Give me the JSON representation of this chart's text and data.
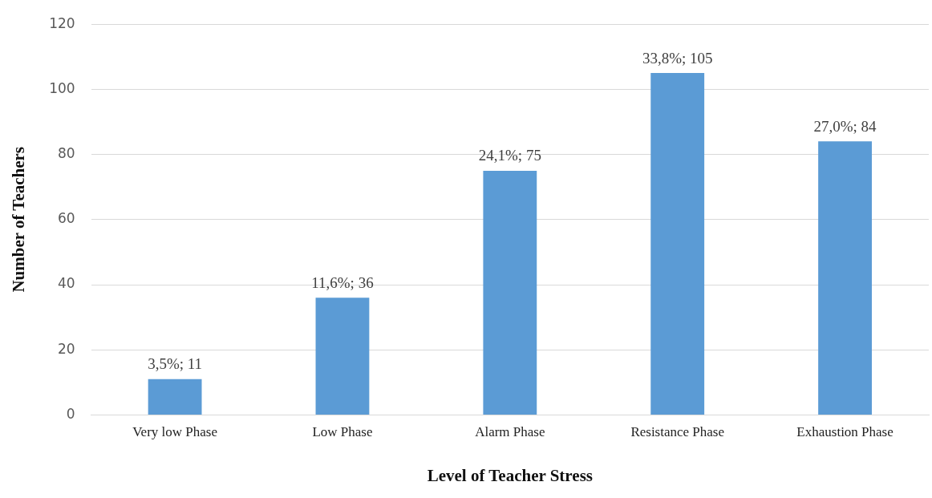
{
  "chart_data": {
    "type": "bar",
    "xlabel": "Level of Teacher Stress",
    "ylabel": "Number of Teachers",
    "categories": [
      "Very low Phase",
      "Low Phase",
      "Alarm Phase",
      "Resistance Phase",
      "Exhaustion Phase"
    ],
    "values": [
      11,
      36,
      75,
      105,
      84
    ],
    "value_labels": [
      "3,5%; 11",
      "11,6%; 36",
      "24,1%; 75",
      "33,8%; 105",
      "27,0%; 84"
    ],
    "color": "#5b9bd5",
    "ylim": [
      0,
      120
    ],
    "yticks": [
      0,
      20,
      40,
      60,
      80,
      100,
      120
    ],
    "grid": "y",
    "legend": false
  }
}
